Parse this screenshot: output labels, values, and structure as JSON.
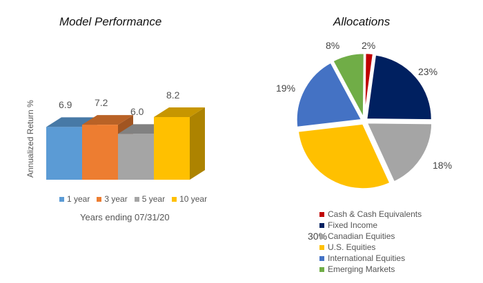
{
  "left": {
    "title": "Model Performance",
    "ylabel": "Annualized Return %",
    "xlabel": "Years ending 07/31/20"
  },
  "right": {
    "title": "Allocations"
  },
  "chart_data": [
    {
      "type": "bar",
      "title": "Model Performance",
      "xlabel": "Years ending 07/31/20",
      "ylabel": "Annualized Return %",
      "categories": [
        "1 year",
        "3 year",
        "5 year",
        "10 year"
      ],
      "values": [
        6.9,
        7.2,
        6.0,
        8.2
      ],
      "labels": [
        "6.9",
        "7.2",
        "6.0",
        "8.2"
      ],
      "colors": [
        "#5B9BD5",
        "#ED7D31",
        "#A5A5A5",
        "#FFC000"
      ],
      "legend_position": "bottom",
      "grid": false
    },
    {
      "type": "pie",
      "title": "Allocations",
      "categories": [
        "Cash & Cash Equivalents",
        "Fixed Income",
        "Canadian Equities",
        "U.S. Equities",
        "International Equities",
        "Emerging Markets"
      ],
      "values": [
        2,
        23,
        18,
        30,
        19,
        8
      ],
      "labels": [
        "2%",
        "23%",
        "18%",
        "30%",
        "19%",
        "8%"
      ],
      "colors": [
        "#C00000",
        "#002060",
        "#A5A5A5",
        "#FFC000",
        "#4472C4",
        "#70AD47"
      ],
      "legend_position": "bottom"
    }
  ]
}
